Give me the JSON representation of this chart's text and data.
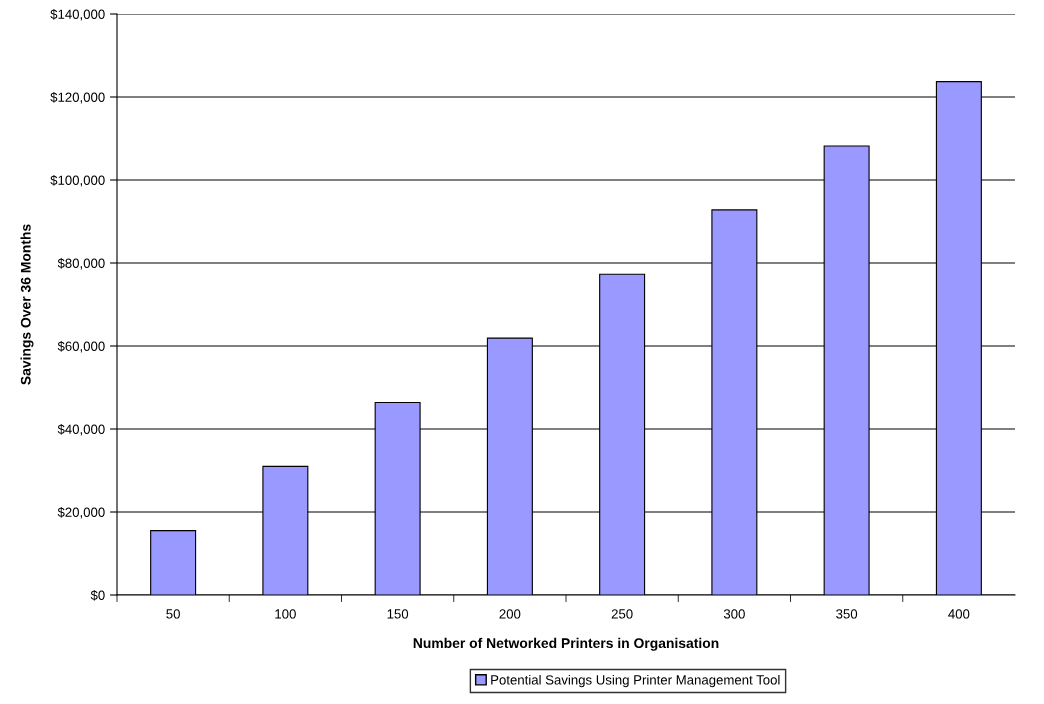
{
  "chart_data": {
    "type": "bar",
    "xlabel": "Number of Networked Printers in Organisation",
    "ylabel": "Savings Over 36 Months",
    "categories": [
      "50",
      "100",
      "150",
      "200",
      "250",
      "300",
      "350",
      "400"
    ],
    "series": [
      {
        "name": "Potential Savings Using Printer Management Tool",
        "color": "#9999ff",
        "values": [
          15500,
          31000,
          46400,
          61900,
          77300,
          92800,
          108200,
          123700
        ]
      }
    ],
    "ylim": [
      0,
      140000
    ],
    "yticks": [
      {
        "value": 0,
        "label": "$0"
      },
      {
        "value": 20000,
        "label": "$20,000"
      },
      {
        "value": 40000,
        "label": "$40,000"
      },
      {
        "value": 60000,
        "label": "$60,000"
      },
      {
        "value": 80000,
        "label": "$80,000"
      },
      {
        "value": 100000,
        "label": "$100,000"
      },
      {
        "value": 120000,
        "label": "$120,000"
      },
      {
        "value": 140000,
        "label": "$140,000"
      }
    ],
    "grid": "y",
    "legend": "bottom"
  }
}
